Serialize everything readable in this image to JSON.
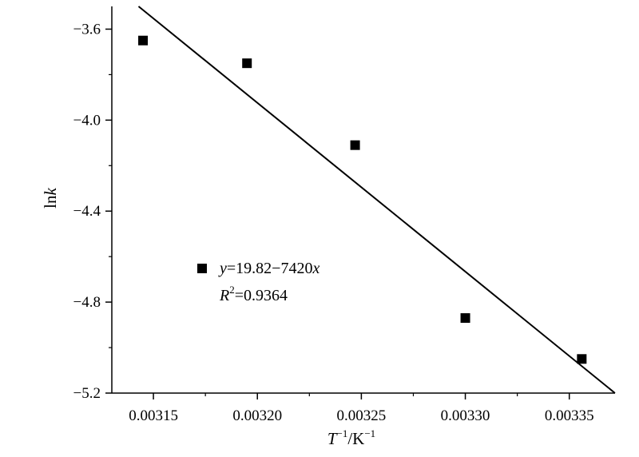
{
  "chart_data": {
    "type": "scatter",
    "title": "",
    "xlabel": {
      "base": "T",
      "sup1": "−1",
      "mid": "/K",
      "sup2": "−1"
    },
    "ylabel": {
      "prefix": "ln",
      "italic": "k"
    },
    "xlim": [
      0.00313,
      0.003372
    ],
    "ylim": [
      -5.2,
      -3.5
    ],
    "x_ticks": [
      0.00315,
      0.0032,
      0.00325,
      0.0033,
      0.00335
    ],
    "x_tick_labels": [
      "0.00315",
      "0.00320",
      "0.00325",
      "0.00330",
      "0.00335"
    ],
    "y_ticks": [
      -3.6,
      -4.0,
      -4.4,
      -4.8,
      -5.2
    ],
    "y_tick_labels": [
      "−3.6",
      "−4.0",
      "−4.4",
      "−4.8",
      "−5.2"
    ],
    "grid": false,
    "series": [
      {
        "marker": "square",
        "color": "#000000",
        "x": [
          0.003145,
          0.003195,
          0.003247,
          0.0033,
          0.003356
        ],
        "y": [
          -3.65,
          -3.75,
          -4.11,
          -4.87,
          -5.05
        ]
      }
    ],
    "fit_line": {
      "intercept": 19.82,
      "slope": -7420,
      "color": "#000000"
    },
    "annotation": {
      "eq_y": "y",
      "eq_rest": "=19.82−7420",
      "eq_x": "x",
      "r2_base": "R",
      "r2_sup": "2",
      "r2_value": "=0.9364"
    }
  }
}
